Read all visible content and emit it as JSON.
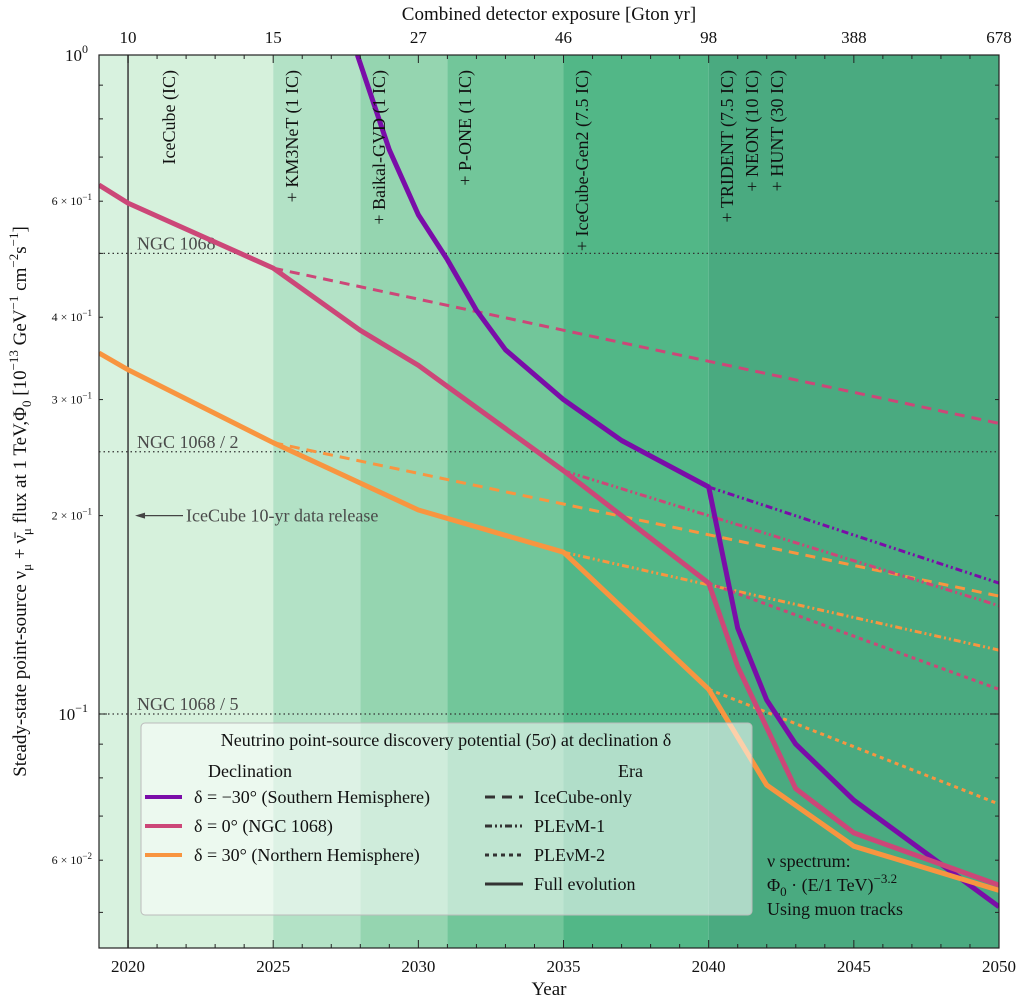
{
  "chart_data": {
    "type": "line",
    "title": "",
    "xlabel": "Year",
    "ylabel": "Steady-state point-source ν_μ + ν̄_μ flux at 1 TeV,Φ_0 [10^-13 GeV^-1 cm^-2 s^-1]",
    "top_xlabel": "Combined detector exposure [Gton yr]",
    "xlim": [
      2019,
      2050
    ],
    "ylim": [
      0.044,
      1.0
    ],
    "yscale": "log",
    "x_ticks": [
      2020,
      2025,
      2030,
      2035,
      2040,
      2045,
      2050
    ],
    "x_tick_labels": [
      "2020",
      "2025",
      "2030",
      "2035",
      "2040",
      "2045",
      "2050"
    ],
    "top_ticks": [
      {
        "year": 2020,
        "label": "10"
      },
      {
        "year": 2025,
        "label": "15"
      },
      {
        "year": 2030,
        "label": "27"
      },
      {
        "year": 2035,
        "label": "46"
      },
      {
        "year": 2040,
        "label": "98"
      },
      {
        "year": 2045,
        "label": "388"
      },
      {
        "year": 2050,
        "label": "678"
      }
    ],
    "y_major_ticks": [
      {
        "value": 1.0,
        "base": "10",
        "exp": "0",
        "mant": ""
      },
      {
        "value": 0.1,
        "base": "10",
        "exp": "−1",
        "mant": ""
      }
    ],
    "y_minor_labeled": [
      {
        "value": 0.6,
        "mant": "6 × 10",
        "exp": "−1"
      },
      {
        "value": 0.4,
        "mant": "4 × 10",
        "exp": "−1"
      },
      {
        "value": 0.3,
        "mant": "3 × 10",
        "exp": "−1"
      },
      {
        "value": 0.2,
        "mant": "2 × 10",
        "exp": "−1"
      },
      {
        "value": 0.06,
        "mant": "6 × 10",
        "exp": "−2"
      }
    ],
    "eras": [
      {
        "start": 2019,
        "end": 2020,
        "label": "",
        "color": "#d8f2df"
      },
      {
        "start": 2020,
        "end": 2025,
        "label": "IceCube (IC)",
        "color": "#d6f1dc"
      },
      {
        "start": 2025,
        "end": 2028,
        "label": "+ KM3NeT (1 IC)",
        "color": "#b3e2c6"
      },
      {
        "start": 2028,
        "end": 2031,
        "label": "+ Baikal-GVD (1 IC)",
        "color": "#95d5b0"
      },
      {
        "start": 2031,
        "end": 2035,
        "label": "+ P-ONE (1 IC)",
        "color": "#72c69a"
      },
      {
        "start": 2035,
        "end": 2040,
        "label": "+ IceCube-Gen2 (7.5 IC)",
        "color": "#52b787"
      },
      {
        "start": 2040,
        "end": 2050,
        "label": "+ TRIDENT (7.5 IC)",
        "color": "#4aaa80"
      }
    ],
    "extra_era_labels": [
      "+ NEON (10 IC)",
      "+ HUNT (30 IC)"
    ],
    "reference_lines": [
      {
        "label": "NGC 1068",
        "value": 0.5
      },
      {
        "label": "NGC 1068 / 2",
        "value": 0.25
      },
      {
        "label": "NGC 1068 / 5",
        "value": 0.1
      }
    ],
    "vline": {
      "year": 2020,
      "annotation": "IceCube 10-yr data release",
      "annotation_value": 0.2
    },
    "series": [
      {
        "name": "δ = −30° (Southern Hemisphere)",
        "color": "#7a0da8",
        "style": "solid",
        "x": [
          2027.9,
          2029,
          2030,
          2031,
          2032,
          2033,
          2035,
          2037,
          2040,
          2041,
          2042,
          2043,
          2045,
          2050
        ],
        "y": [
          1.0,
          0.718,
          0.572,
          0.489,
          0.41,
          0.357,
          0.3,
          0.26,
          0.221,
          0.135,
          0.105,
          0.09,
          0.074,
          0.051
        ]
      },
      {
        "name": "δ = 0° (NGC 1068)",
        "color": "#cc4778",
        "style": "solid",
        "x": [
          2019,
          2020,
          2025,
          2028,
          2030,
          2035,
          2040,
          2041,
          2043,
          2045,
          2050
        ],
        "y": [
          0.635,
          0.596,
          0.475,
          0.382,
          0.338,
          0.234,
          0.158,
          0.118,
          0.077,
          0.066,
          0.055
        ]
      },
      {
        "name": "δ = 30° (Northern Hemisphere)",
        "color": "#f89540",
        "style": "solid",
        "x": [
          2019,
          2020,
          2025,
          2030,
          2035,
          2040,
          2042,
          2045,
          2050
        ],
        "y": [
          0.353,
          0.333,
          0.258,
          0.204,
          0.176,
          0.109,
          0.078,
          0.063,
          0.054
        ]
      },
      {
        "name": "δ = 0° IceCube-only",
        "color": "#cc4778",
        "style": "dashed",
        "x": [
          2025,
          2050
        ],
        "y": [
          0.475,
          0.276
        ]
      },
      {
        "name": "δ = 30° IceCube-only",
        "color": "#f89540",
        "style": "dashed",
        "x": [
          2025,
          2050
        ],
        "y": [
          0.258,
          0.151
        ]
      },
      {
        "name": "δ = −30° PLEνM-1",
        "color": "#7a0da8",
        "style": "dashdot",
        "x": [
          2040,
          2050
        ],
        "y": [
          0.221,
          0.158
        ]
      },
      {
        "name": "δ = 0° PLEνM-1",
        "color": "#cc4778",
        "style": "dashdot",
        "x": [
          2035,
          2050
        ],
        "y": [
          0.234,
          0.146
        ]
      },
      {
        "name": "δ = 30° PLEνM-1",
        "color": "#f89540",
        "style": "dashdot",
        "x": [
          2035,
          2050
        ],
        "y": [
          0.176,
          0.125
        ]
      },
      {
        "name": "δ = 0° PLEνM-2",
        "color": "#cc4778",
        "style": "dotted",
        "x": [
          2040,
          2050
        ],
        "y": [
          0.158,
          0.109
        ]
      },
      {
        "name": "δ = 30° PLEνM-2",
        "color": "#f89540",
        "style": "dotted",
        "x": [
          2040,
          2050
        ],
        "y": [
          0.109,
          0.073
        ]
      }
    ],
    "legend": {
      "title": "Neutrino point-source discovery potential (5σ) at declination δ",
      "declination_header": "Declination",
      "era_header": "Era",
      "declination_entries": [
        {
          "label": "δ = −30° (Southern Hemisphere)",
          "color": "#7a0da8"
        },
        {
          "label": "δ = 0° (NGC 1068)",
          "color": "#cc4778"
        },
        {
          "label": "δ = 30° (Northern Hemisphere)",
          "color": "#f89540"
        }
      ],
      "era_entries": [
        {
          "label": "IceCube-only",
          "style": "dashed"
        },
        {
          "label": "PLEνM-1",
          "style": "dashdot"
        },
        {
          "label": "PLEνM-2",
          "style": "dotted"
        },
        {
          "label": "Full evolution",
          "style": "solid"
        }
      ],
      "placement": "lower-left"
    },
    "note": {
      "line1": "ν spectrum:",
      "line2_base": "Φ",
      "line2_sub": "0",
      "line2_mid": " · (E/1 TeV)",
      "line2_sup": "−3.2",
      "line3": "Using muon tracks"
    }
  }
}
